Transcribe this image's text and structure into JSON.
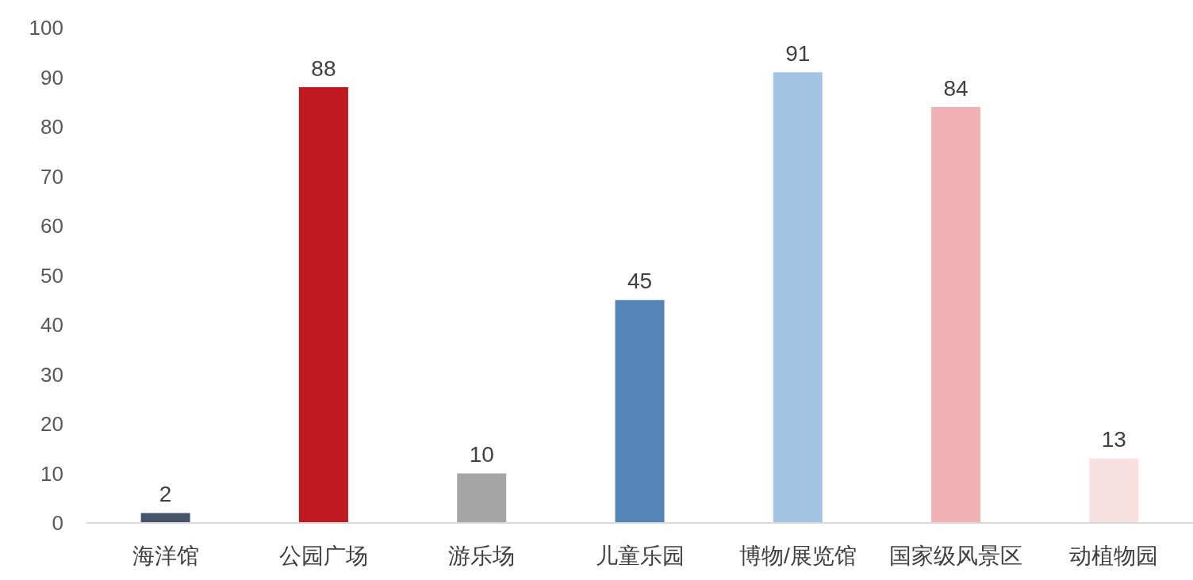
{
  "chart_data": {
    "type": "bar",
    "categories": [
      "海洋馆",
      "公园广场",
      "游乐场",
      "儿童乐园",
      "博物/展览馆",
      "国家级风景区",
      "动植物园"
    ],
    "values": [
      2,
      88,
      10,
      45,
      91,
      84,
      13
    ],
    "colors": [
      "#44546a",
      "#c0191f",
      "#a5a5a5",
      "#5584b6",
      "#a4c2e2",
      "#f0b2b2",
      "#f9e0e0"
    ],
    "ylim": [
      0,
      100
    ],
    "yticks": [
      0,
      10,
      20,
      30,
      40,
      50,
      60,
      70,
      80,
      90,
      100
    ],
    "data_labels": true
  }
}
